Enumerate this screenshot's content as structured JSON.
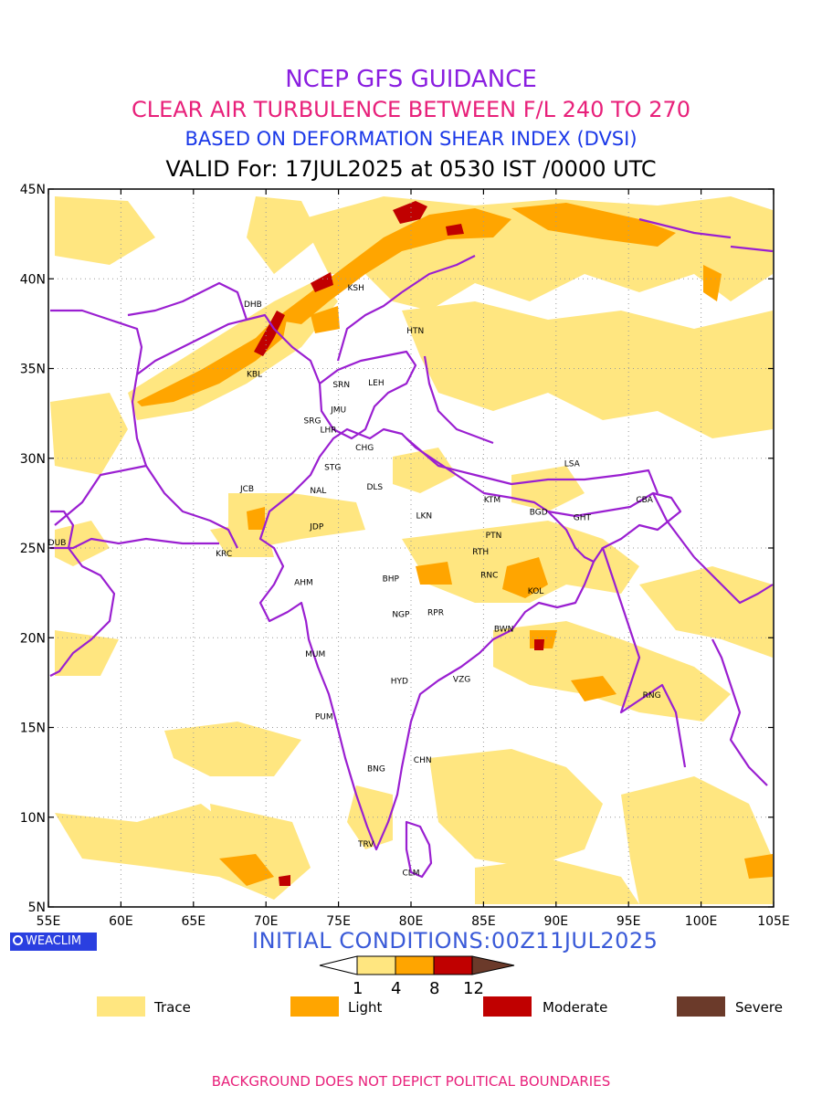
{
  "titles": {
    "line1": "NCEP GFS GUIDANCE",
    "line2": "CLEAR AIR TURBULENCE BETWEEN F/L 240 TO 270",
    "line3": "BASED ON DEFORMATION SHEAR INDEX (DVSI)",
    "line4": "VALID For: 17JUL2025 at 0530 IST /0000 UTC"
  },
  "map": {
    "lon_range": [
      55,
      105
    ],
    "lat_range": [
      5,
      45
    ],
    "lon_ticks": [
      "55E",
      "60E",
      "65E",
      "70E",
      "75E",
      "80E",
      "85E",
      "90E",
      "95E",
      "100E",
      "105E"
    ],
    "lat_ticks": [
      "45N",
      "40N",
      "35N",
      "30N",
      "25N",
      "20N",
      "15N",
      "10N",
      "5N"
    ],
    "grid": "dotted",
    "stations": [
      {
        "code": "DHB",
        "lon": 69.1,
        "lat": 38.6
      },
      {
        "code": "KSH",
        "lon": 76.2,
        "lat": 39.5
      },
      {
        "code": "HTN",
        "lon": 80.3,
        "lat": 37.1
      },
      {
        "code": "KBL",
        "lon": 69.2,
        "lat": 34.7
      },
      {
        "code": "SRN",
        "lon": 75.2,
        "lat": 34.1
      },
      {
        "code": "LEH",
        "lon": 77.6,
        "lat": 34.2
      },
      {
        "code": "JMU",
        "lon": 75.0,
        "lat": 32.7
      },
      {
        "code": "SRG",
        "lon": 73.2,
        "lat": 32.1
      },
      {
        "code": "LHR",
        "lon": 74.3,
        "lat": 31.6
      },
      {
        "code": "CHG",
        "lon": 76.8,
        "lat": 30.6
      },
      {
        "code": "LSA",
        "lon": 91.1,
        "lat": 29.7
      },
      {
        "code": "STG",
        "lon": 74.6,
        "lat": 29.5
      },
      {
        "code": "JCB",
        "lon": 68.7,
        "lat": 28.3
      },
      {
        "code": "NAL",
        "lon": 73.6,
        "lat": 28.2
      },
      {
        "code": "DLS",
        "lon": 77.5,
        "lat": 28.4
      },
      {
        "code": "KTM",
        "lon": 85.6,
        "lat": 27.7
      },
      {
        "code": "CBA",
        "lon": 96.1,
        "lat": 27.7
      },
      {
        "code": "BGD",
        "lon": 88.8,
        "lat": 27.0
      },
      {
        "code": "GHT",
        "lon": 91.8,
        "lat": 26.7
      },
      {
        "code": "JDP",
        "lon": 73.5,
        "lat": 26.2
      },
      {
        "code": "LKN",
        "lon": 80.9,
        "lat": 26.8
      },
      {
        "code": "DUB",
        "lon": 55.6,
        "lat": 25.3
      },
      {
        "code": "PTN",
        "lon": 85.7,
        "lat": 25.7
      },
      {
        "code": "KRC",
        "lon": 67.1,
        "lat": 24.7
      },
      {
        "code": "RTH",
        "lon": 84.8,
        "lat": 24.8
      },
      {
        "code": "AHM",
        "lon": 72.6,
        "lat": 23.1
      },
      {
        "code": "BHP",
        "lon": 78.6,
        "lat": 23.3
      },
      {
        "code": "RNC",
        "lon": 85.4,
        "lat": 23.5
      },
      {
        "code": "KOL",
        "lon": 88.6,
        "lat": 22.6
      },
      {
        "code": "NGP",
        "lon": 79.3,
        "lat": 21.3
      },
      {
        "code": "RPR",
        "lon": 81.7,
        "lat": 21.4
      },
      {
        "code": "BWN",
        "lon": 86.4,
        "lat": 20.5
      },
      {
        "code": "MUM",
        "lon": 73.4,
        "lat": 19.1
      },
      {
        "code": "HYD",
        "lon": 79.2,
        "lat": 17.6
      },
      {
        "code": "VZG",
        "lon": 83.5,
        "lat": 17.7
      },
      {
        "code": "RNG",
        "lon": 96.6,
        "lat": 16.8
      },
      {
        "code": "PUM",
        "lon": 74.0,
        "lat": 15.6
      },
      {
        "code": "CHN",
        "lon": 80.8,
        "lat": 13.2
      },
      {
        "code": "BNG",
        "lon": 77.6,
        "lat": 12.7
      },
      {
        "code": "TRV",
        "lon": 76.9,
        "lat": 8.5
      },
      {
        "code": "CLM",
        "lon": 80.0,
        "lat": 6.9
      }
    ]
  },
  "logo_text": "WEACLIM",
  "initial_conditions": "INITIAL CONDITIONS:00Z11JUL2025",
  "colorbar": {
    "values": [
      "1",
      "4",
      "8",
      "12"
    ],
    "colors": [
      "#ffe680",
      "#ffa500",
      "#c00000",
      "#6b3a2a"
    ]
  },
  "legend": [
    {
      "label": "Trace",
      "color": "#ffe680"
    },
    {
      "label": "Light",
      "color": "#ffa500"
    },
    {
      "label": "Moderate",
      "color": "#c00000"
    },
    {
      "label": "Severe",
      "color": "#6b3a2a"
    }
  ],
  "colors": {
    "boundary": "#9a1fd1",
    "trace": "#ffe680",
    "light": "#ffa500",
    "moderate": "#c00000"
  },
  "footer": "BACKGROUND DOES NOT DEPICT POLITICAL BOUNDARIES"
}
